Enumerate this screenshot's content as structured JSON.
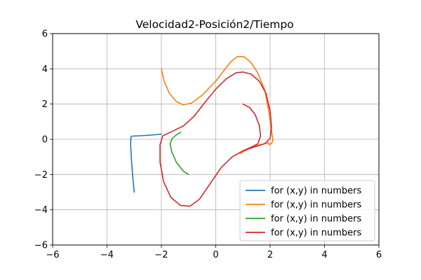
{
  "chart_data": {
    "type": "line",
    "title": "Velocidad2-Posición2/Tiempo",
    "xlabel": "",
    "ylabel": "",
    "xlim": [
      -6,
      6
    ],
    "ylim": [
      -6,
      6
    ],
    "x_ticks": [
      -6,
      -4,
      -2,
      0,
      2,
      4,
      6
    ],
    "y_ticks": [
      -6,
      -4,
      -2,
      0,
      2,
      4,
      6
    ],
    "x_tick_labels": [
      "−6",
      "−4",
      "−2",
      "0",
      "2",
      "4",
      "6"
    ],
    "y_tick_labels": [
      "−6",
      "−4",
      "−2",
      "0",
      "2",
      "4",
      "6"
    ],
    "grid": true,
    "legend_position": "lower right",
    "series": [
      {
        "name": " for (x,y) in numbers",
        "color": "#1f77b4",
        "points": [
          [
            -3.0,
            -3.0
          ],
          [
            -3.05,
            -2.2
          ],
          [
            -3.1,
            -1.2
          ],
          [
            -3.13,
            -0.3
          ],
          [
            -3.12,
            0.1
          ],
          [
            -3.1,
            0.18
          ],
          [
            -2.8,
            0.2
          ],
          [
            -2.4,
            0.24
          ],
          [
            -2.1,
            0.28
          ],
          [
            -2.0,
            0.3
          ]
        ]
      },
      {
        "name": " for (x,y) in numbers",
        "color": "#ff7f0e",
        "points": [
          [
            -2.0,
            4.0
          ],
          [
            -1.9,
            3.3
          ],
          [
            -1.7,
            2.6
          ],
          [
            -1.45,
            2.15
          ],
          [
            -1.2,
            1.95
          ],
          [
            -0.9,
            2.05
          ],
          [
            -0.5,
            2.5
          ],
          [
            0.0,
            3.3
          ],
          [
            0.3,
            3.9
          ],
          [
            0.55,
            4.4
          ],
          [
            0.8,
            4.7
          ],
          [
            1.05,
            4.68
          ],
          [
            1.3,
            4.35
          ],
          [
            1.55,
            3.75
          ],
          [
            1.8,
            2.8
          ],
          [
            1.95,
            1.6
          ],
          [
            2.05,
            0.5
          ],
          [
            2.1,
            -0.05
          ],
          [
            2.05,
            -0.25
          ],
          [
            1.95,
            -0.3
          ],
          [
            1.95,
            -0.2
          ],
          [
            1.5,
            -0.35
          ],
          [
            1.2,
            -0.55
          ],
          [
            0.9,
            -0.8
          ]
        ]
      },
      {
        "name": " for (x,y) in numbers",
        "color": "#2ca02c",
        "points": [
          [
            -1.0,
            -2.0
          ],
          [
            -1.2,
            -1.8
          ],
          [
            -1.45,
            -1.3
          ],
          [
            -1.62,
            -0.7
          ],
          [
            -1.68,
            -0.25
          ],
          [
            -1.6,
            0.05
          ],
          [
            -1.45,
            0.25
          ],
          [
            -1.3,
            0.4
          ]
        ]
      },
      {
        "name": " for (x,y) in numbers",
        "color": "#d62728",
        "points": [
          [
            1.0,
            2.0
          ],
          [
            1.25,
            1.8
          ],
          [
            1.45,
            1.4
          ],
          [
            1.6,
            0.8
          ],
          [
            1.65,
            0.2
          ],
          [
            1.55,
            -0.25
          ],
          [
            1.3,
            -0.45
          ],
          [
            1.0,
            -0.65
          ],
          [
            0.6,
            -1.0
          ],
          [
            0.2,
            -1.6
          ],
          [
            -0.2,
            -2.5
          ],
          [
            -0.6,
            -3.4
          ],
          [
            -0.95,
            -3.8
          ],
          [
            -1.3,
            -3.75
          ],
          [
            -1.65,
            -3.3
          ],
          [
            -1.92,
            -2.4
          ],
          [
            -2.05,
            -1.3
          ],
          [
            -2.05,
            -0.3
          ],
          [
            -1.95,
            0.2
          ],
          [
            -1.6,
            0.45
          ],
          [
            -1.2,
            0.75
          ],
          [
            -0.8,
            1.3
          ],
          [
            -0.4,
            2.1
          ],
          [
            0.0,
            2.85
          ],
          [
            0.4,
            3.45
          ],
          [
            0.75,
            3.78
          ],
          [
            1.0,
            3.82
          ],
          [
            1.3,
            3.7
          ],
          [
            1.6,
            3.3
          ],
          [
            1.85,
            2.6
          ],
          [
            2.0,
            1.6
          ],
          [
            2.05,
            0.7
          ],
          [
            2.0,
            0.05
          ],
          [
            1.8,
            -0.25
          ],
          [
            1.4,
            -0.45
          ],
          [
            1.0,
            -0.65
          ],
          [
            0.6,
            -1.0
          ],
          [
            0.2,
            -1.6
          ],
          [
            -0.2,
            -2.5
          ],
          [
            -0.6,
            -3.4
          ],
          [
            -0.95,
            -3.8
          ],
          [
            -1.3,
            -3.75
          ],
          [
            -1.65,
            -3.3
          ],
          [
            -1.92,
            -2.4
          ],
          [
            -2.05,
            -1.3
          ],
          [
            -2.05,
            -0.3
          ],
          [
            -1.95,
            0.2
          ],
          [
            -1.6,
            0.45
          ],
          [
            -1.2,
            0.75
          ],
          [
            -0.8,
            1.3
          ],
          [
            -0.4,
            2.1
          ],
          [
            0.0,
            2.85
          ],
          [
            0.4,
            3.45
          ],
          [
            0.75,
            3.78
          ],
          [
            1.0,
            3.82
          ],
          [
            1.3,
            3.7
          ],
          [
            1.6,
            3.3
          ],
          [
            1.85,
            2.6
          ],
          [
            2.0,
            1.6
          ],
          [
            2.05,
            0.7
          ],
          [
            2.0,
            0.05
          ],
          [
            1.8,
            -0.25
          ],
          [
            1.4,
            -0.45
          ],
          [
            1.0,
            -0.65
          ]
        ]
      }
    ]
  }
}
